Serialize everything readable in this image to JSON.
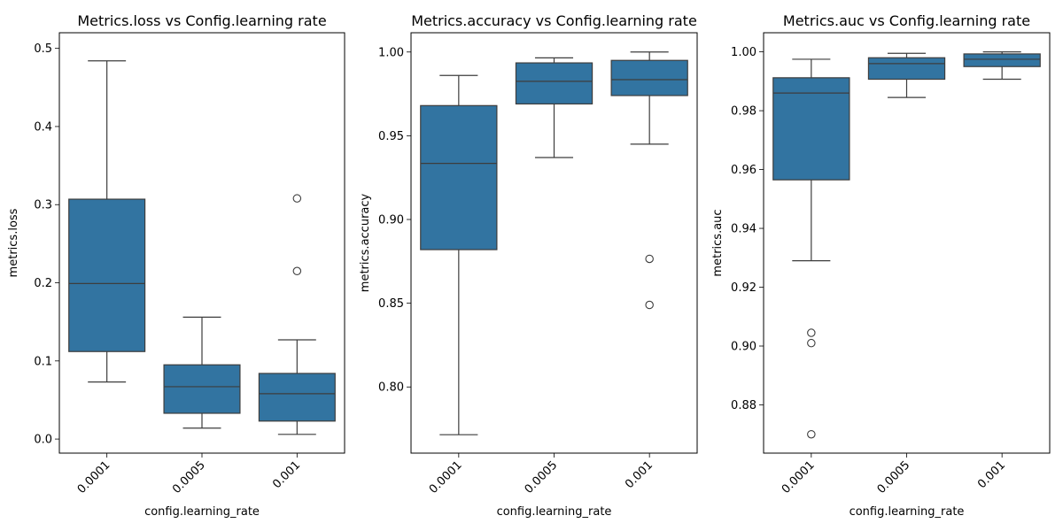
{
  "chart_data": [
    {
      "type": "box",
      "title": "Metrics.loss vs Config.learning rate",
      "xlabel": "config.learning_rate",
      "ylabel": "metrics.loss",
      "categories": [
        "0.0001",
        "0.0005",
        "0.001"
      ],
      "ylim": [
        -0.018,
        0.52
      ],
      "yticks": [
        0.0,
        0.1,
        0.2,
        0.3,
        0.4,
        0.5
      ],
      "ytick_labels": [
        "0.0",
        "0.1",
        "0.2",
        "0.3",
        "0.4",
        "0.5"
      ],
      "boxes": [
        {
          "whisker_low": 0.073,
          "q1": 0.112,
          "median": 0.199,
          "q3": 0.307,
          "whisker_high": 0.484,
          "outliers": []
        },
        {
          "whisker_low": 0.014,
          "q1": 0.033,
          "median": 0.067,
          "q3": 0.095,
          "whisker_high": 0.156,
          "outliers": []
        },
        {
          "whisker_low": 0.006,
          "q1": 0.023,
          "median": 0.058,
          "q3": 0.084,
          "whisker_high": 0.127,
          "outliers": [
            0.215,
            0.308
          ]
        }
      ]
    },
    {
      "type": "box",
      "title": "Metrics.accuracy vs Config.learning rate",
      "xlabel": "config.learning_rate",
      "ylabel": "metrics.accuracy",
      "categories": [
        "0.0001",
        "0.0005",
        "0.001"
      ],
      "ylim": [
        0.7605,
        1.0115
      ],
      "yticks": [
        0.8,
        0.85,
        0.9,
        0.95,
        1.0
      ],
      "ytick_labels": [
        "0.80",
        "0.85",
        "0.90",
        "0.95",
        "1.00"
      ],
      "boxes": [
        {
          "whisker_low": 0.7715,
          "q1": 0.882,
          "median": 0.9335,
          "q3": 0.968,
          "whisker_high": 0.986,
          "outliers": []
        },
        {
          "whisker_low": 0.937,
          "q1": 0.969,
          "median": 0.9825,
          "q3": 0.9935,
          "whisker_high": 0.9965,
          "outliers": []
        },
        {
          "whisker_low": 0.945,
          "q1": 0.974,
          "median": 0.9835,
          "q3": 0.995,
          "whisker_high": 1.0,
          "outliers": [
            0.8765,
            0.849
          ]
        }
      ]
    },
    {
      "type": "box",
      "title": "Metrics.auc vs Config.learning rate",
      "xlabel": "config.learning_rate",
      "ylabel": "metrics.auc",
      "categories": [
        "0.0001",
        "0.0005",
        "0.001"
      ],
      "ylim": [
        0.8636,
        1.0065
      ],
      "yticks": [
        0.88,
        0.9,
        0.92,
        0.94,
        0.96,
        0.98,
        1.0
      ],
      "ytick_labels": [
        "0.88",
        "0.90",
        "0.92",
        "0.94",
        "0.96",
        "0.98",
        "1.00"
      ],
      "boxes": [
        {
          "whisker_low": 0.929,
          "q1": 0.9565,
          "median": 0.986,
          "q3": 0.9912,
          "whisker_high": 0.9975,
          "outliers": [
            0.9045,
            0.901,
            0.87
          ]
        },
        {
          "whisker_low": 0.9845,
          "q1": 0.9907,
          "median": 0.996,
          "q3": 0.998,
          "whisker_high": 0.9995,
          "outliers": []
        },
        {
          "whisker_low": 0.9907,
          "q1": 0.995,
          "median": 0.9975,
          "q3": 0.9993,
          "whisker_high": 1.0,
          "outliers": []
        }
      ]
    }
  ],
  "style": {
    "box_color": "#3274a1",
    "line_color": "#3d3d3d"
  }
}
